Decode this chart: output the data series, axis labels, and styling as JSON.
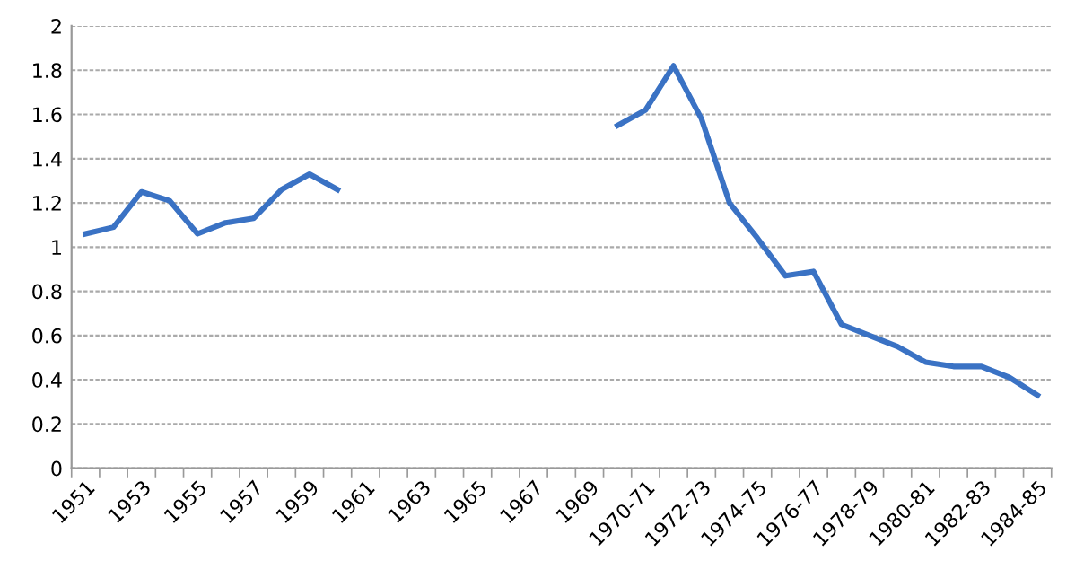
{
  "chart_data": {
    "type": "line",
    "categories": [
      "1951",
      null,
      "1953",
      null,
      "1955",
      null,
      "1957",
      null,
      "1959",
      null,
      "1961",
      null,
      "1963",
      null,
      "1965",
      null,
      "1967",
      null,
      "1969",
      null,
      "1970-71",
      null,
      "1972-73",
      null,
      "1974-75",
      null,
      "1976-77",
      null,
      "1978-79",
      null,
      "1980-81",
      null,
      "1982-83",
      null,
      "1984-85"
    ],
    "series": [
      {
        "color": "#3a72c4",
        "values": [
          1.06,
          1.09,
          1.25,
          1.21,
          1.06,
          1.11,
          1.13,
          1.26,
          1.33,
          1.26,
          null,
          null,
          null,
          null,
          null,
          null,
          null,
          null,
          null,
          1.55,
          1.62,
          1.82,
          1.58,
          1.2,
          1.04,
          0.87,
          0.89,
          0.65,
          0.6,
          0.55,
          0.48,
          0.46,
          0.46,
          0.41,
          0.33
        ]
      }
    ],
    "ylim": [
      0,
      2
    ],
    "yticks": [
      0,
      0.2,
      0.4,
      0.6,
      0.8,
      1,
      1.2,
      1.4,
      1.6,
      1.8,
      2
    ],
    "grid": "y",
    "marker": "none",
    "line_style": "solid"
  }
}
